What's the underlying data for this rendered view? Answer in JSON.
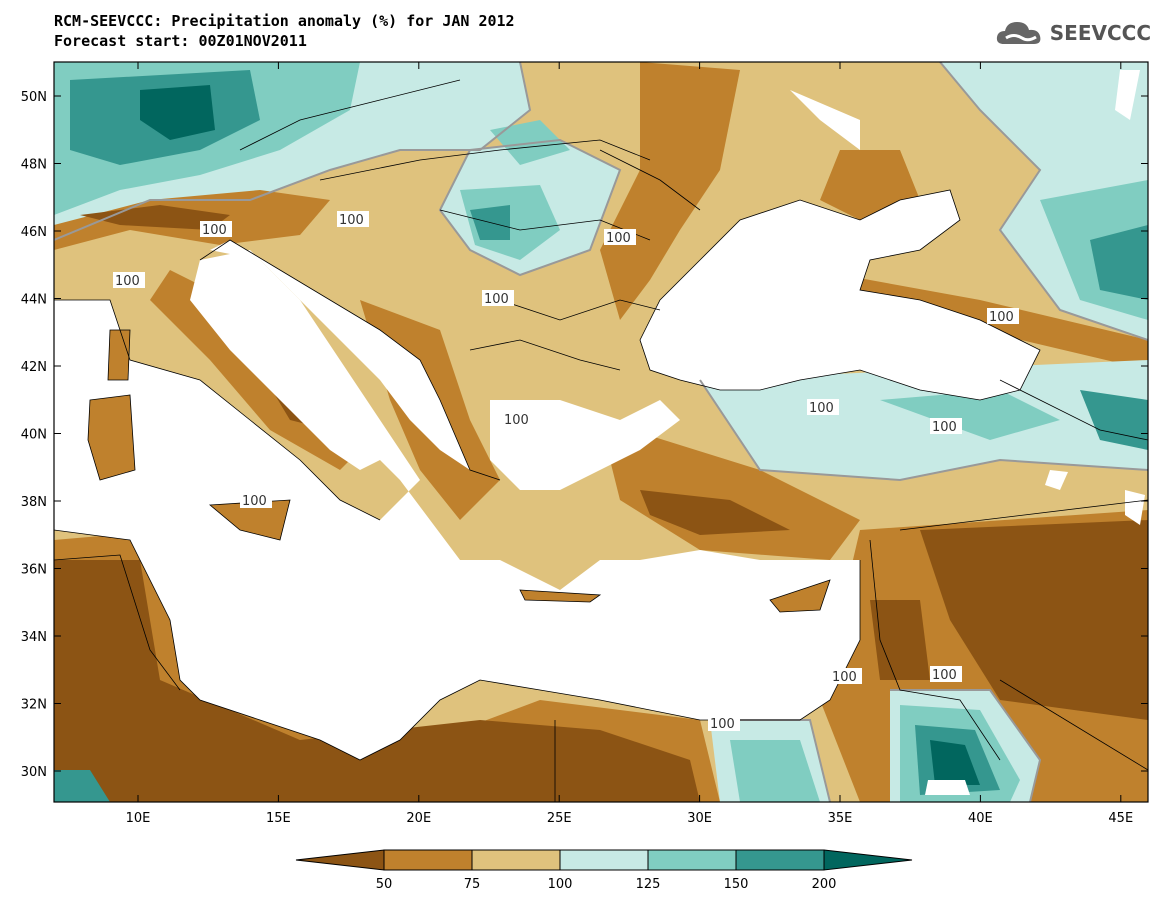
{
  "header": {
    "title_line1": "RCM-SEEVCCC: Precipitation anomaly (%) for JAN 2012",
    "title_line2": "Forecast start: 00Z01NOV2011",
    "logo_text": "SEEVCCC"
  },
  "map": {
    "lon_labels": [
      "10E",
      "15E",
      "20E",
      "25E",
      "30E",
      "35E",
      "40E",
      "45E"
    ],
    "lat_labels": [
      "50N",
      "48N",
      "46N",
      "44N",
      "42N",
      "40N",
      "38N",
      "36N",
      "34N",
      "32N",
      "30N"
    ],
    "contour_labels": [
      "100",
      "100",
      "100",
      "100",
      "100",
      "100",
      "100",
      "100",
      "100",
      "100",
      "100",
      "100",
      "100"
    ]
  },
  "colorbar": {
    "ticks": [
      "50",
      "75",
      "100",
      "125",
      "150",
      "200"
    ],
    "colors": [
      "#8c5414",
      "#bf812d",
      "#dfc27d",
      "#c7eae5",
      "#80cdc1",
      "#35978f",
      "#01665e"
    ]
  }
}
